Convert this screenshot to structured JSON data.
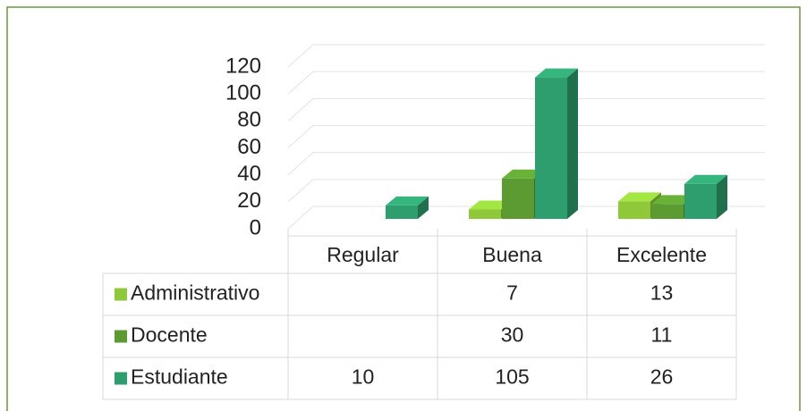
{
  "chart_data": {
    "type": "bar3d",
    "categories": [
      "Regular",
      "Buena",
      "Excelente"
    ],
    "series": [
      {
        "name": "Administrativo",
        "color": "#8fc93a",
        "values": [
          null,
          7,
          13
        ]
      },
      {
        "name": "Docente",
        "color": "#5b9b31",
        "values": [
          null,
          30,
          11
        ]
      },
      {
        "name": "Estudiante",
        "color": "#2e9e6e",
        "values": [
          10,
          105,
          26
        ]
      }
    ],
    "ylim": [
      0,
      120
    ],
    "yticks": [
      0,
      20,
      40,
      60,
      80,
      100,
      120
    ],
    "grid": true,
    "data_table": true
  }
}
